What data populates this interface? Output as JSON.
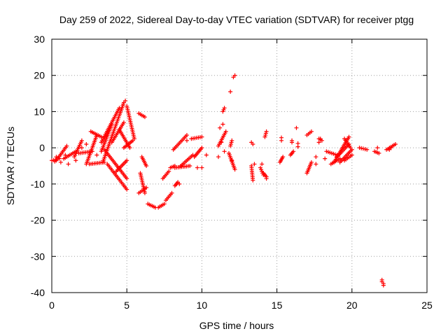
{
  "chart_data": {
    "type": "scatter",
    "title": "Day 259 of 2022, Sidereal Day-to-day VTEC variation (SDTVAR) for receiver ptgg",
    "xlabel": "GPS time / hours",
    "ylabel": "SDTVAR / TECUs",
    "xlim": [
      0,
      25
    ],
    "ylim": [
      -40,
      30
    ],
    "xticks": [
      0,
      5,
      10,
      15,
      20,
      25
    ],
    "yticks": [
      -40,
      -30,
      -20,
      -10,
      0,
      10,
      20,
      30
    ],
    "grid": true,
    "marker": "plus",
    "color": "#ff0000",
    "segments": [
      {
        "x0": 0.0,
        "y0": -3.5,
        "x1": 0.5,
        "y1": -3.0
      },
      {
        "x0": 0.3,
        "y0": -3.5,
        "x1": 1.0,
        "y1": 0.5
      },
      {
        "x0": 0.8,
        "y0": -3.0,
        "x1": 1.6,
        "y1": -1.0
      },
      {
        "x0": 1.5,
        "y0": -2.5,
        "x1": 2.0,
        "y1": 2.0
      },
      {
        "x0": 1.8,
        "y0": -1.5,
        "x1": 2.7,
        "y1": -1.0
      },
      {
        "x0": 2.3,
        "y0": -4.5,
        "x1": 3.0,
        "y1": 3.5
      },
      {
        "x0": 2.6,
        "y0": 4.5,
        "x1": 3.3,
        "y1": 3.0
      },
      {
        "x0": 2.5,
        "y0": -4.5,
        "x1": 3.5,
        "y1": -4.0
      },
      {
        "x0": 3.3,
        "y0": -1.0,
        "x1": 4.0,
        "y1": 6.5
      },
      {
        "x0": 3.3,
        "y0": 1.5,
        "x1": 4.5,
        "y1": 11.0
      },
      {
        "x0": 3.4,
        "y0": -4.0,
        "x1": 4.8,
        "y1": 12.5
      },
      {
        "x0": 3.7,
        "y0": -4.5,
        "x1": 5.0,
        "y1": -11.5
      },
      {
        "x0": 3.5,
        "y0": -0.5,
        "x1": 5.0,
        "y1": -8.5
      },
      {
        "x0": 4.3,
        "y0": -6.5,
        "x1": 5.0,
        "y1": -3.5
      },
      {
        "x0": 4.0,
        "y0": 1.5,
        "x1": 4.8,
        "y1": 7.0
      },
      {
        "x0": 4.5,
        "y0": 5.0,
        "x1": 5.2,
        "y1": 0.0
      },
      {
        "x0": 5.0,
        "y0": 11.5,
        "x1": 5.5,
        "y1": 2.5
      },
      {
        "x0": 4.8,
        "y0": 0.0,
        "x1": 5.4,
        "y1": 2.0
      },
      {
        "x0": 5.9,
        "y0": -7.0,
        "x1": 6.2,
        "y1": -12.5
      },
      {
        "x0": 5.8,
        "y0": -12.5,
        "x1": 6.3,
        "y1": -11.0
      },
      {
        "x0": 6.0,
        "y0": -2.5,
        "x1": 6.3,
        "y1": -5.0
      },
      {
        "x0": 5.8,
        "y0": 9.5,
        "x1": 6.2,
        "y1": 8.5
      },
      {
        "x0": 6.4,
        "y0": -15.5,
        "x1": 6.9,
        "y1": -16.5
      },
      {
        "x0": 7.1,
        "y0": -16.5,
        "x1": 7.5,
        "y1": -15.5
      },
      {
        "x0": 7.6,
        "y0": -14.5,
        "x1": 8.0,
        "y1": -12.5
      },
      {
        "x0": 7.4,
        "y0": -8.5,
        "x1": 7.8,
        "y1": -6.5
      },
      {
        "x0": 7.9,
        "y0": -5.5,
        "x1": 8.2,
        "y1": -5.0
      },
      {
        "x0": 8.2,
        "y0": -10.5,
        "x1": 8.4,
        "y1": -9.5
      },
      {
        "x0": 8.2,
        "y0": -5.5,
        "x1": 9.2,
        "y1": -5.0
      },
      {
        "x0": 8.1,
        "y0": -0.5,
        "x1": 9.0,
        "y1": 3.5
      },
      {
        "x0": 8.6,
        "y0": -5.0,
        "x1": 9.4,
        "y1": -2.0
      },
      {
        "x0": 9.3,
        "y0": 2.5,
        "x1": 10.0,
        "y1": 3.0
      },
      {
        "x0": 9.5,
        "y0": -2.5,
        "x1": 10.0,
        "y1": 0.0
      },
      {
        "x0": 11.1,
        "y0": 0.5,
        "x1": 11.6,
        "y1": 4.5
      },
      {
        "x0": 11.4,
        "y0": 10.0,
        "x1": 11.5,
        "y1": 11.0
      },
      {
        "x0": 11.8,
        "y0": -1.5,
        "x1": 12.2,
        "y1": -6.0
      },
      {
        "x0": 11.9,
        "y0": 0.5,
        "x1": 12.0,
        "y1": 2.0
      },
      {
        "x0": 13.3,
        "y0": -5.0,
        "x1": 13.4,
        "y1": -9.0
      },
      {
        "x0": 13.9,
        "y0": -5.5,
        "x1": 14.1,
        "y1": -7.5
      },
      {
        "x0": 14.1,
        "y0": -7.0,
        "x1": 14.3,
        "y1": -8.0
      },
      {
        "x0": 14.2,
        "y0": 3.0,
        "x1": 14.3,
        "y1": 4.5
      },
      {
        "x0": 15.2,
        "y0": -4.0,
        "x1": 15.4,
        "y1": -2.5
      },
      {
        "x0": 15.9,
        "y0": -2.0,
        "x1": 16.1,
        "y1": -1.0
      },
      {
        "x0": 17.0,
        "y0": -7.0,
        "x1": 17.3,
        "y1": -4.0
      },
      {
        "x0": 17.0,
        "y0": 3.5,
        "x1": 17.3,
        "y1": 4.5
      },
      {
        "x0": 17.8,
        "y0": 2.5,
        "x1": 18.0,
        "y1": 2.0
      },
      {
        "x0": 18.3,
        "y0": -1.0,
        "x1": 19.0,
        "y1": -2.0
      },
      {
        "x0": 18.6,
        "y0": -4.5,
        "x1": 19.2,
        "y1": -3.0
      },
      {
        "x0": 18.8,
        "y0": -4.0,
        "x1": 19.8,
        "y1": 3.0
      },
      {
        "x0": 19.0,
        "y0": -2.5,
        "x1": 19.8,
        "y1": 1.0
      },
      {
        "x0": 19.2,
        "y0": -4.0,
        "x1": 20.0,
        "y1": -0.5
      },
      {
        "x0": 19.5,
        "y0": -3.5,
        "x1": 20.0,
        "y1": -2.0
      },
      {
        "x0": 19.5,
        "y0": 2.5,
        "x1": 19.9,
        "y1": 0.0
      },
      {
        "x0": 20.5,
        "y0": 0.0,
        "x1": 21.0,
        "y1": -0.5
      },
      {
        "x0": 21.5,
        "y0": -1.0,
        "x1": 21.8,
        "y1": -1.5
      },
      {
        "x0": 22.3,
        "y0": -0.5,
        "x1": 22.6,
        "y1": 0.0
      },
      {
        "x0": 22.5,
        "y0": 0.0,
        "x1": 22.9,
        "y1": 1.0
      }
    ],
    "points": [
      {
        "x": 0.2,
        "y": -3.8
      },
      {
        "x": 0.3,
        "y": -2.5
      },
      {
        "x": 0.6,
        "y": -4.0
      },
      {
        "x": 0.9,
        "y": -2.0
      },
      {
        "x": 1.1,
        "y": -4.5
      },
      {
        "x": 1.6,
        "y": -3.5
      },
      {
        "x": 2.0,
        "y": 0.0
      },
      {
        "x": 2.3,
        "y": 1.0
      },
      {
        "x": 3.0,
        "y": -2.0
      },
      {
        "x": 4.9,
        "y": 13.0
      },
      {
        "x": 8.5,
        "y": -10.0
      },
      {
        "x": 9.7,
        "y": -5.5
      },
      {
        "x": 10.0,
        "y": -5.5
      },
      {
        "x": 9.0,
        "y": 2.0
      },
      {
        "x": 10.3,
        "y": -2.0
      },
      {
        "x": 11.1,
        "y": -2.5
      },
      {
        "x": 11.2,
        "y": 5.5
      },
      {
        "x": 11.3,
        "y": 1.5
      },
      {
        "x": 11.4,
        "y": 6.5
      },
      {
        "x": 11.5,
        "y": -1.0
      },
      {
        "x": 11.9,
        "y": 15.5
      },
      {
        "x": 12.1,
        "y": 19.5
      },
      {
        "x": 12.2,
        "y": 20.0
      },
      {
        "x": 12.0,
        "y": -3.5
      },
      {
        "x": 13.3,
        "y": 1.5
      },
      {
        "x": 13.4,
        "y": 1.0
      },
      {
        "x": 13.5,
        "y": -4.5
      },
      {
        "x": 14.0,
        "y": -4.5
      },
      {
        "x": 14.3,
        "y": -8.5
      },
      {
        "x": 15.3,
        "y": 2.0
      },
      {
        "x": 15.3,
        "y": 2.8
      },
      {
        "x": 16.0,
        "y": 2.0
      },
      {
        "x": 16.0,
        "y": 1.5
      },
      {
        "x": 16.3,
        "y": 5.5
      },
      {
        "x": 16.4,
        "y": 1.2
      },
      {
        "x": 16.4,
        "y": 0.3
      },
      {
        "x": 17.6,
        "y": -2.5
      },
      {
        "x": 17.6,
        "y": -4.5
      },
      {
        "x": 17.8,
        "y": 1.5
      },
      {
        "x": 17.9,
        "y": 2.5
      },
      {
        "x": 18.2,
        "y": -3.0
      },
      {
        "x": 21.7,
        "y": 0.0
      },
      {
        "x": 22.0,
        "y": -36.5
      },
      {
        "x": 22.0,
        "y": -37.0
      },
      {
        "x": 22.1,
        "y": -37.5
      },
      {
        "x": 22.1,
        "y": -38.0
      },
      {
        "x": 22.5,
        "y": -0.5
      }
    ]
  }
}
